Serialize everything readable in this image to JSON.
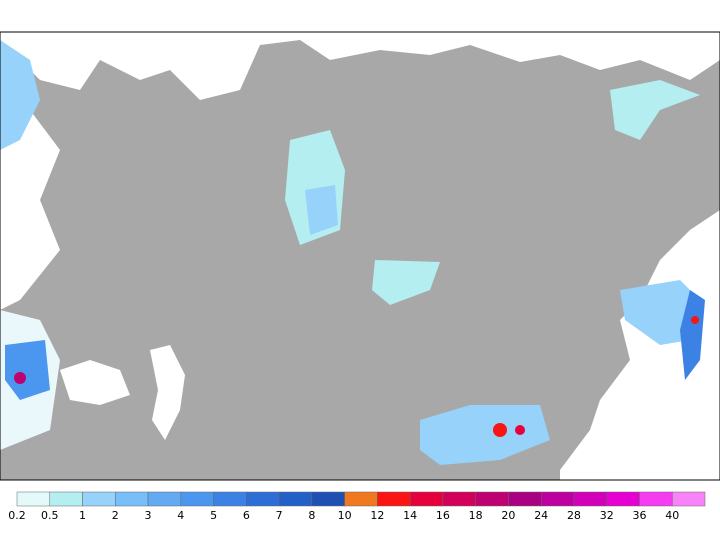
{
  "legend": {
    "levels": [
      0.2,
      0.5,
      1,
      2,
      3,
      4,
      5,
      6,
      7,
      8,
      10,
      12,
      14,
      16,
      18,
      20,
      24,
      28,
      32,
      36,
      40
    ],
    "colors": [
      "#e4fafa",
      "#b4eef0",
      "#96d2fa",
      "#78bef8",
      "#64aaf2",
      "#4b96ee",
      "#3c82e4",
      "#2d6ed6",
      "#2260c8",
      "#1e50b4",
      "#f0781e",
      "#fa1414",
      "#e6003c",
      "#d2005a",
      "#be0070",
      "#aa0082",
      "#be00a0",
      "#d200b9",
      "#e600d2",
      "#f53cf0",
      "#f882f8"
    ]
  }
}
